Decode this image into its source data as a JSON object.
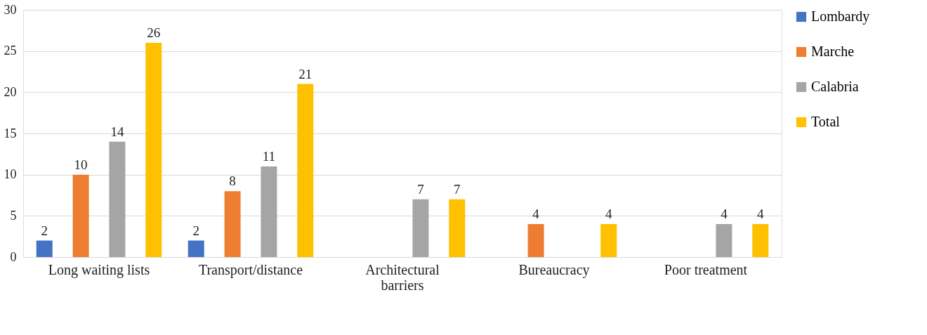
{
  "chart_data": {
    "type": "bar",
    "categories": [
      "Long waiting lists",
      "Transport/distance",
      "Architectural barriers",
      "Bureaucracy",
      "Poor treatment"
    ],
    "series": [
      {
        "name": "Lombardy",
        "color": "#4472c4",
        "values": [
          2,
          2,
          null,
          null,
          null
        ]
      },
      {
        "name": "Marche",
        "color": "#ed7d31",
        "values": [
          10,
          8,
          null,
          4,
          null
        ]
      },
      {
        "name": "Calabria",
        "color": "#a5a5a5",
        "values": [
          14,
          11,
          7,
          null,
          4
        ]
      },
      {
        "name": "Total",
        "color": "#ffc000",
        "values": [
          26,
          21,
          7,
          4,
          4
        ]
      }
    ],
    "ylim": [
      0,
      30
    ],
    "yticks": [
      0,
      5,
      10,
      15,
      20,
      25,
      30
    ],
    "grid": "y",
    "legend": "right",
    "data_labels": true
  }
}
